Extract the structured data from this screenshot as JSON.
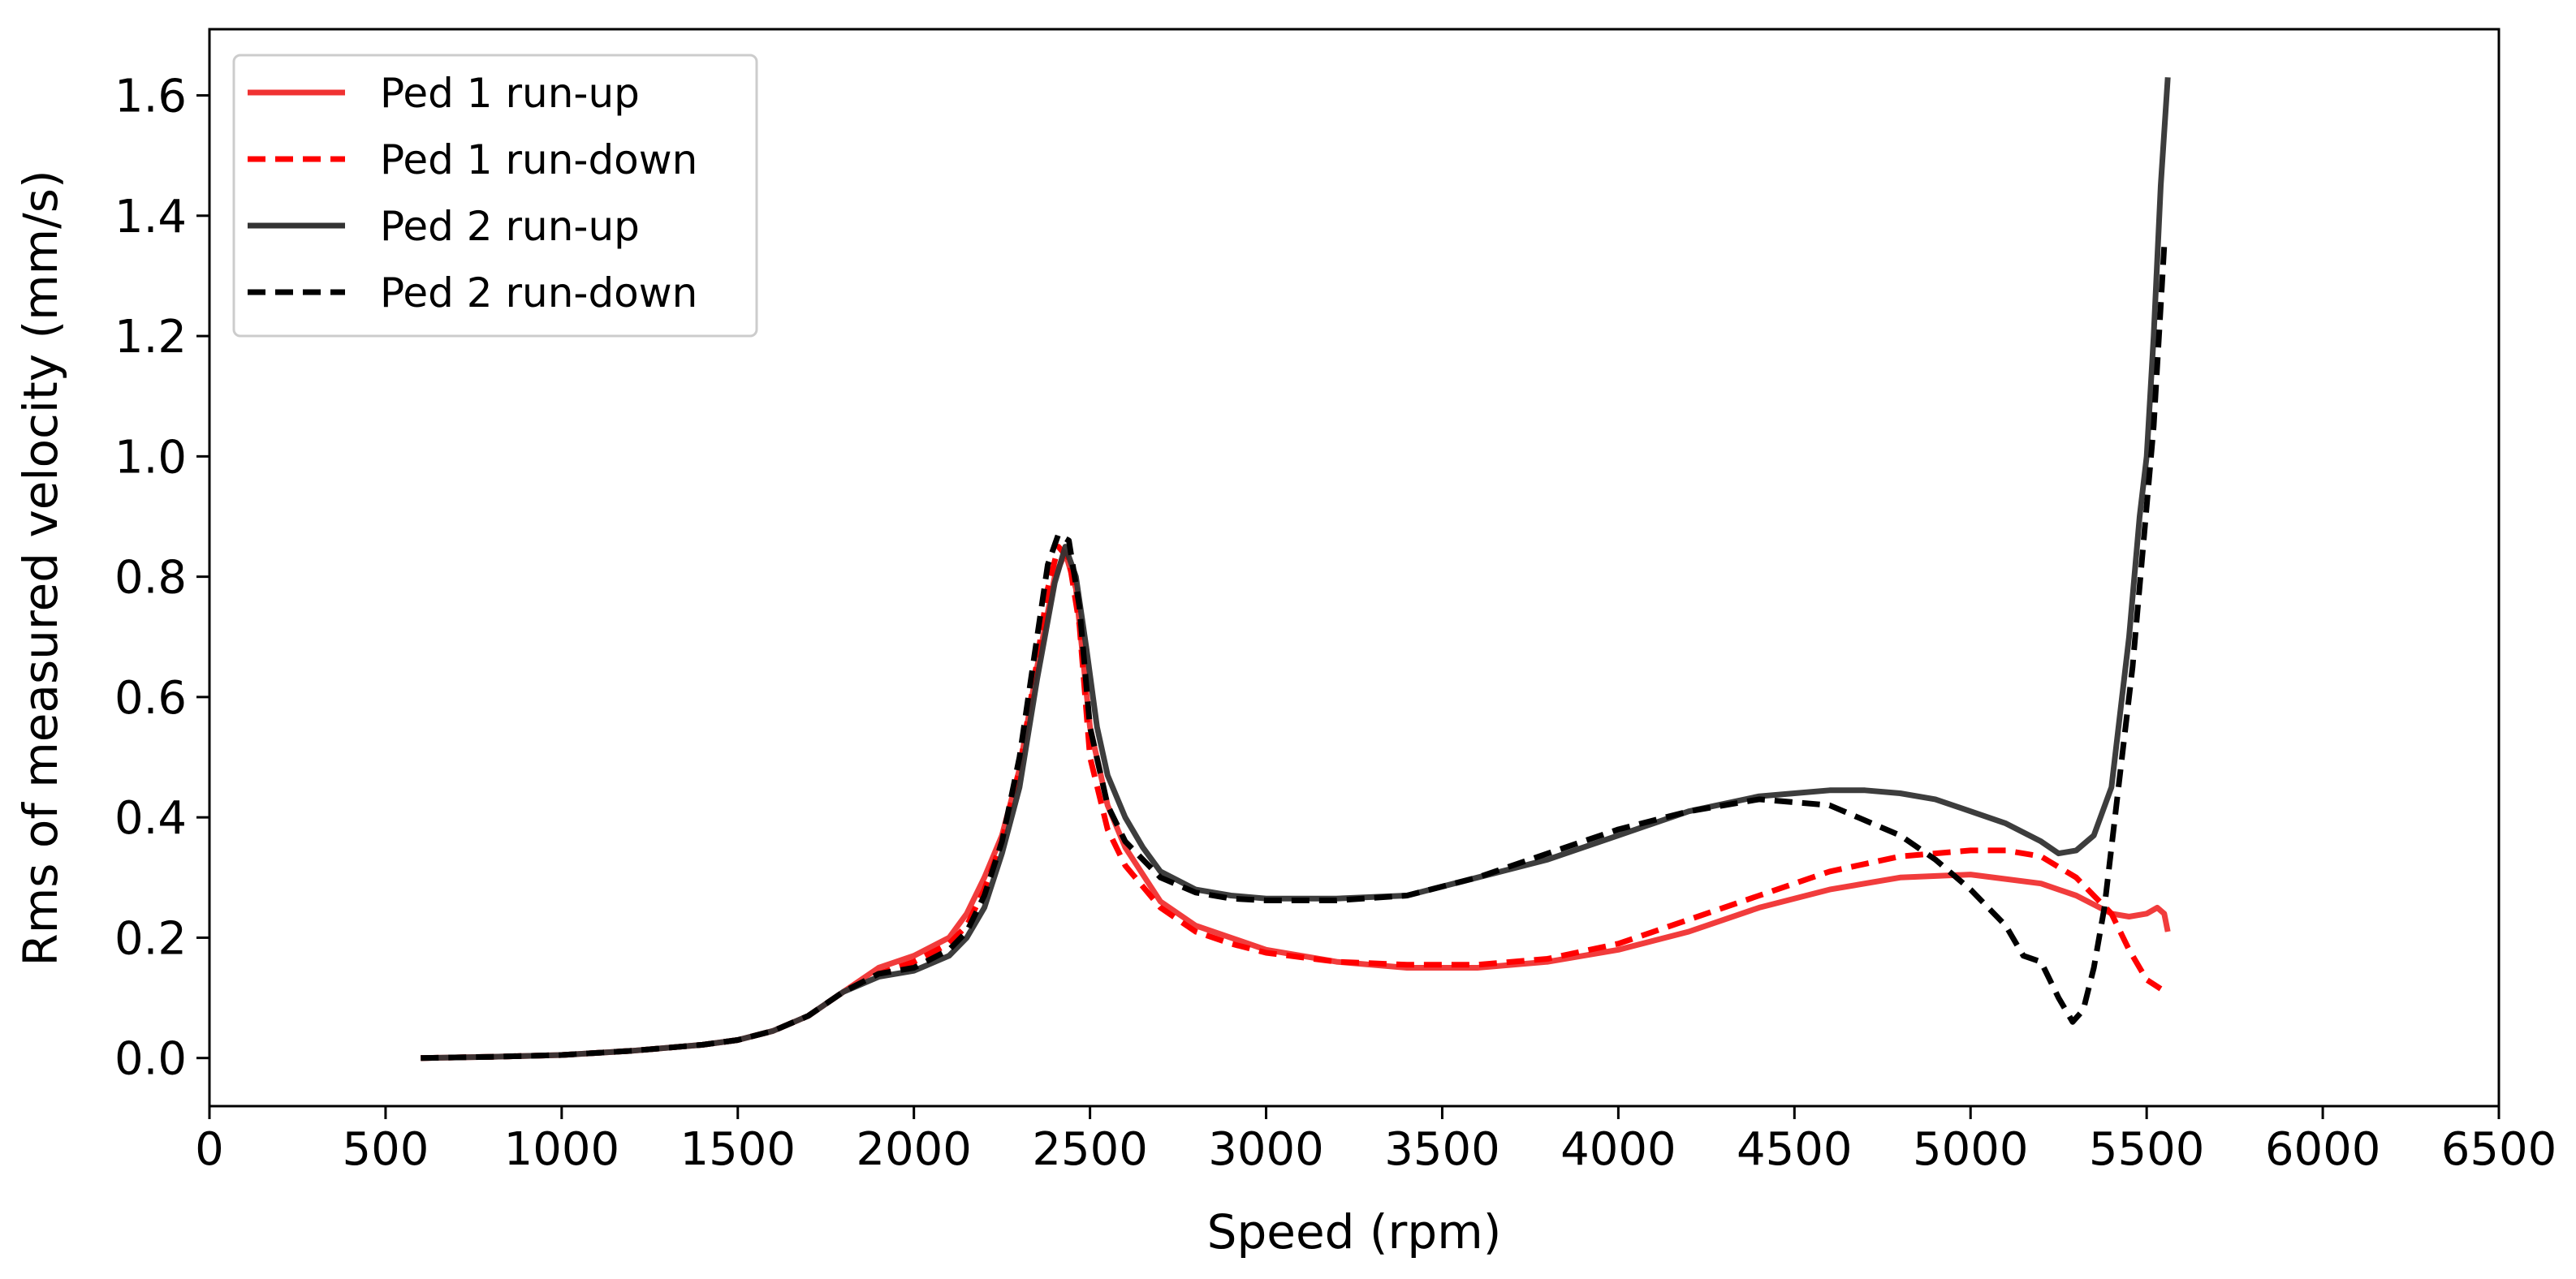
{
  "chart_data": {
    "type": "line",
    "title": "",
    "xlabel": "Speed (rpm)",
    "ylabel": "Rms of measured velocity (mm/s)",
    "xlim": [
      0,
      6500
    ],
    "ylim": [
      -0.08,
      1.71
    ],
    "xticks": [
      0,
      500,
      1000,
      1500,
      2000,
      2500,
      3000,
      3500,
      4000,
      4500,
      5000,
      5500,
      6000,
      6500
    ],
    "xtick_labels": [
      "0",
      "500",
      "1000",
      "1500",
      "2000",
      "2500",
      "3000",
      "3500",
      "4000",
      "4500",
      "5000",
      "5500",
      "6000",
      "6500"
    ],
    "yticks": [
      0.0,
      0.2,
      0.4,
      0.6,
      0.8,
      1.0,
      1.2,
      1.4,
      1.6
    ],
    "ytick_labels": [
      "0.0",
      "0.2",
      "0.4",
      "0.6",
      "0.8",
      "1.0",
      "1.2",
      "1.4",
      "1.6"
    ],
    "grid": false,
    "legend_position": "top-left",
    "series": [
      {
        "name": "Ped 1 run-up",
        "color": "#f03232",
        "style": "solid",
        "x": [
          600,
          800,
          1000,
          1200,
          1400,
          1500,
          1600,
          1700,
          1800,
          1900,
          2000,
          2100,
          2150,
          2200,
          2250,
          2300,
          2350,
          2400,
          2430,
          2460,
          2500,
          2550,
          2600,
          2700,
          2800,
          2900,
          3000,
          3200,
          3400,
          3600,
          3800,
          4000,
          4200,
          4400,
          4600,
          4800,
          5000,
          5200,
          5300,
          5400,
          5450,
          5500,
          5530,
          5550,
          5560
        ],
        "y": [
          0.0,
          0.002,
          0.005,
          0.012,
          0.022,
          0.03,
          0.045,
          0.07,
          0.11,
          0.15,
          0.17,
          0.2,
          0.24,
          0.3,
          0.37,
          0.48,
          0.65,
          0.8,
          0.84,
          0.78,
          0.55,
          0.42,
          0.35,
          0.26,
          0.22,
          0.2,
          0.18,
          0.16,
          0.15,
          0.15,
          0.16,
          0.18,
          0.21,
          0.25,
          0.28,
          0.3,
          0.305,
          0.29,
          0.27,
          0.24,
          0.235,
          0.24,
          0.25,
          0.24,
          0.21
        ]
      },
      {
        "name": "Ped 1 run-down",
        "color": "#ff0000",
        "style": "dashed",
        "x": [
          600,
          800,
          1000,
          1200,
          1400,
          1500,
          1600,
          1700,
          1800,
          1900,
          2000,
          2100,
          2150,
          2200,
          2250,
          2300,
          2350,
          2380,
          2410,
          2440,
          2470,
          2500,
          2550,
          2600,
          2700,
          2800,
          2900,
          3000,
          3200,
          3400,
          3600,
          3800,
          4000,
          4200,
          4400,
          4600,
          4800,
          5000,
          5100,
          5200,
          5300,
          5400,
          5450,
          5500,
          5540
        ],
        "y": [
          0.0,
          0.002,
          0.005,
          0.012,
          0.022,
          0.03,
          0.045,
          0.07,
          0.11,
          0.14,
          0.16,
          0.19,
          0.22,
          0.28,
          0.36,
          0.48,
          0.66,
          0.78,
          0.85,
          0.83,
          0.72,
          0.5,
          0.38,
          0.32,
          0.25,
          0.21,
          0.19,
          0.175,
          0.16,
          0.155,
          0.155,
          0.165,
          0.19,
          0.23,
          0.27,
          0.31,
          0.335,
          0.345,
          0.345,
          0.335,
          0.3,
          0.24,
          0.18,
          0.13,
          0.115
        ]
      },
      {
        "name": "Ped 2 run-up",
        "color": "#333333",
        "style": "solid",
        "x": [
          600,
          800,
          1000,
          1200,
          1400,
          1500,
          1600,
          1700,
          1800,
          1900,
          2000,
          2100,
          2150,
          2200,
          2250,
          2300,
          2350,
          2400,
          2430,
          2460,
          2490,
          2520,
          2550,
          2600,
          2650,
          2700,
          2800,
          2900,
          3000,
          3200,
          3400,
          3600,
          3800,
          4000,
          4200,
          4400,
          4500,
          4600,
          4700,
          4800,
          4900,
          5000,
          5100,
          5200,
          5250,
          5300,
          5350,
          5400,
          5450,
          5480,
          5500,
          5520,
          5540,
          5560
        ],
        "y": [
          0.0,
          0.002,
          0.005,
          0.012,
          0.022,
          0.03,
          0.045,
          0.07,
          0.11,
          0.135,
          0.145,
          0.17,
          0.2,
          0.25,
          0.34,
          0.45,
          0.63,
          0.79,
          0.85,
          0.8,
          0.68,
          0.55,
          0.47,
          0.4,
          0.35,
          0.31,
          0.28,
          0.27,
          0.265,
          0.265,
          0.27,
          0.3,
          0.33,
          0.37,
          0.41,
          0.435,
          0.44,
          0.445,
          0.445,
          0.44,
          0.43,
          0.41,
          0.39,
          0.36,
          0.34,
          0.345,
          0.37,
          0.45,
          0.7,
          0.9,
          1.0,
          1.2,
          1.45,
          1.63
        ]
      },
      {
        "name": "Ped 2 run-down",
        "color": "#000000",
        "style": "dashed",
        "x": [
          600,
          800,
          1000,
          1200,
          1400,
          1500,
          1600,
          1700,
          1800,
          1900,
          2000,
          2100,
          2150,
          2200,
          2250,
          2300,
          2350,
          2380,
          2410,
          2440,
          2470,
          2500,
          2550,
          2600,
          2700,
          2800,
          2900,
          3000,
          3200,
          3400,
          3600,
          3800,
          4000,
          4200,
          4400,
          4600,
          4800,
          4900,
          5000,
          5100,
          5150,
          5200,
          5250,
          5290,
          5320,
          5350,
          5380,
          5400,
          5430,
          5460,
          5490,
          5520,
          5540,
          5550
        ],
        "y": [
          0.0,
          0.002,
          0.005,
          0.012,
          0.022,
          0.03,
          0.045,
          0.07,
          0.11,
          0.14,
          0.15,
          0.18,
          0.21,
          0.27,
          0.36,
          0.5,
          0.7,
          0.82,
          0.87,
          0.86,
          0.75,
          0.55,
          0.42,
          0.36,
          0.3,
          0.275,
          0.265,
          0.262,
          0.262,
          0.27,
          0.3,
          0.34,
          0.38,
          0.41,
          0.43,
          0.42,
          0.37,
          0.33,
          0.28,
          0.22,
          0.17,
          0.16,
          0.1,
          0.06,
          0.08,
          0.15,
          0.25,
          0.35,
          0.5,
          0.65,
          0.85,
          1.05,
          1.25,
          1.35
        ]
      }
    ]
  }
}
